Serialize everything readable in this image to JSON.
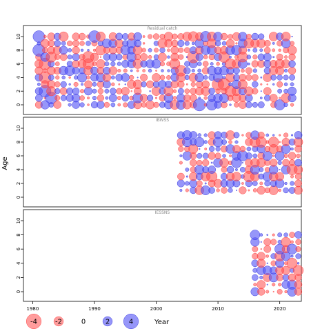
{
  "chart_data": {
    "type": "scatter",
    "description_type": "bubble residual plot",
    "xlabel": "Year",
    "ylabel": "Age",
    "x_ticks": [
      1980,
      1990,
      2000,
      2010,
      2020
    ],
    "y_ticks": [
      0,
      2,
      4,
      6,
      8,
      10
    ],
    "xlim": [
      1978.5,
      2023.5
    ],
    "ylim": [
      -1,
      11
    ],
    "colors": {
      "negative": "#ff4b4b",
      "positive": "#5050f5"
    },
    "legend": {
      "placement": "bottom",
      "values": [
        -4,
        -2,
        0,
        2,
        4
      ],
      "labels": [
        "-4",
        "-2",
        "0",
        "2",
        "4"
      ]
    },
    "panels": [
      {
        "title": "Residual catch",
        "years": [
          1981,
          2022
        ],
        "ages": [
          0,
          10
        ],
        "highlights": [
          {
            "year": 1981,
            "age": 10,
            "value": 3.0
          },
          {
            "year": 1981,
            "age": 8,
            "value": 3.2
          },
          {
            "year": 1982,
            "age": 6,
            "value": -3.0
          },
          {
            "year": 1982,
            "age": 4,
            "value": -3.0
          },
          {
            "year": 1982,
            "age": 2,
            "value": 3.1
          },
          {
            "year": 1983,
            "age": 1,
            "value": 3.0
          },
          {
            "year": 1983,
            "age": 7,
            "value": -2.4
          },
          {
            "year": 1986,
            "age": 5,
            "value": 2.2
          },
          {
            "year": 1989,
            "age": 7,
            "value": -2.8
          },
          {
            "year": 1989,
            "age": 6,
            "value": -2.5
          },
          {
            "year": 1990,
            "age": 10,
            "value": 3.0
          },
          {
            "year": 1991,
            "age": 8,
            "value": -2.2
          },
          {
            "year": 1997,
            "age": 1,
            "value": 2.2
          },
          {
            "year": 2003,
            "age": 6,
            "value": -2.4
          },
          {
            "year": 2004,
            "age": 5,
            "value": -2.6
          },
          {
            "year": 2006,
            "age": 7,
            "value": -3.0
          },
          {
            "year": 2006,
            "age": 10,
            "value": -2.2
          },
          {
            "year": 2007,
            "age": 0,
            "value": 3.3
          },
          {
            "year": 2008,
            "age": 10,
            "value": 2.4
          },
          {
            "year": 2009,
            "age": 0,
            "value": 2.6
          },
          {
            "year": 2010,
            "age": 3,
            "value": -3.0
          },
          {
            "year": 2011,
            "age": 3,
            "value": -3.2
          },
          {
            "year": 2011,
            "age": 7,
            "value": -2.6
          },
          {
            "year": 2012,
            "age": 2,
            "value": -2.6
          },
          {
            "year": 2012,
            "age": 6,
            "value": -2.4
          },
          {
            "year": 2013,
            "age": 8,
            "value": 2.2
          },
          {
            "year": 2014,
            "age": 7,
            "value": -2.3
          },
          {
            "year": 2015,
            "age": 9,
            "value": -2.1
          },
          {
            "year": 2020,
            "age": 0,
            "value": 2.4
          }
        ]
      },
      {
        "title": "IBWSS",
        "years": [
          2004,
          2023
        ],
        "ages": [
          1,
          9
        ],
        "highlights": [
          {
            "year": 2007,
            "age": 8,
            "value": 2.0
          },
          {
            "year": 2009,
            "age": 3,
            "value": -2.5
          },
          {
            "year": 2010,
            "age": 8,
            "value": 2.1
          },
          {
            "year": 2013,
            "age": 5,
            "value": 2.3
          },
          {
            "year": 2014,
            "age": 6,
            "value": 2.4
          },
          {
            "year": 2015,
            "age": 3,
            "value": -2.6
          },
          {
            "year": 2016,
            "age": 8,
            "value": -2.3
          },
          {
            "year": 2017,
            "age": 8,
            "value": -2.5
          },
          {
            "year": 2019,
            "age": 8,
            "value": -2.3
          },
          {
            "year": 2022,
            "age": 4,
            "value": -2.4
          }
        ]
      },
      {
        "title": "IESSNS",
        "years": [
          2016,
          2023
        ],
        "ages": [
          0,
          8
        ],
        "highlights": [
          {
            "year": 2016,
            "age": 8,
            "value": 2.1
          },
          {
            "year": 2020,
            "age": 6,
            "value": 2.2
          },
          {
            "year": 2022,
            "age": 6,
            "value": 2.3
          },
          {
            "year": 2022,
            "age": 4,
            "value": -2.4
          },
          {
            "year": 2023,
            "age": 3,
            "value": -2.3
          },
          {
            "year": 2020,
            "age": 5,
            "value": -2.2
          }
        ]
      }
    ]
  }
}
